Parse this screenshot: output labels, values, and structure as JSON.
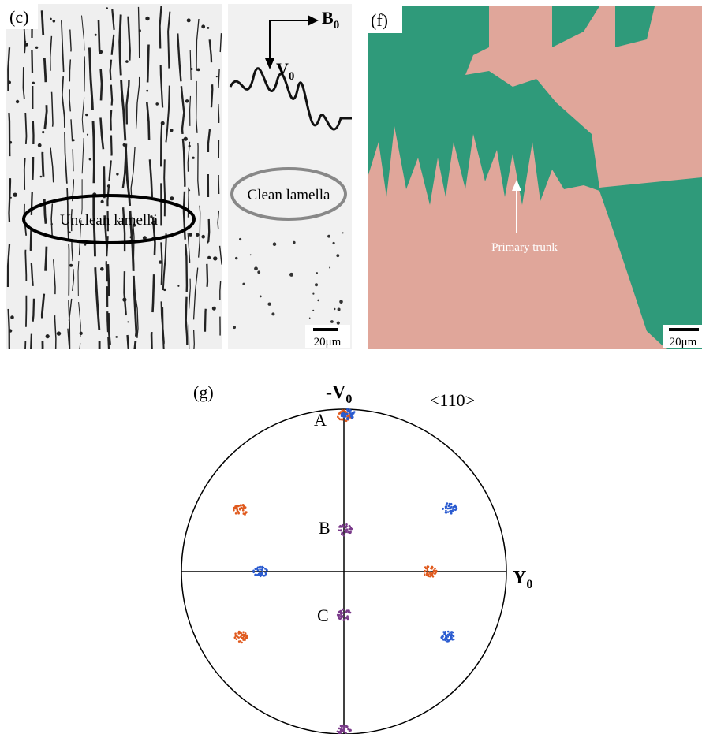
{
  "panel_c": {
    "label": "(c)",
    "axis_b": {
      "symbol": "B",
      "subscript": "0"
    },
    "axis_v": {
      "symbol": "V",
      "subscript": "0"
    },
    "unclean": "Unclean lamella",
    "clean": "Clean lamella",
    "scale_bar": "20μm"
  },
  "panel_f": {
    "label": "(f)",
    "arrow_label": "Primary trunk",
    "scale_bar": "20μm"
  },
  "panel_g": {
    "label": "(g)",
    "top_axis": {
      "symbol": "-V",
      "subscript": "0"
    },
    "direction": "<110>",
    "right_axis": {
      "symbol": "Y",
      "subscript": "0"
    },
    "points": [
      "A",
      "B",
      "C"
    ]
  }
}
